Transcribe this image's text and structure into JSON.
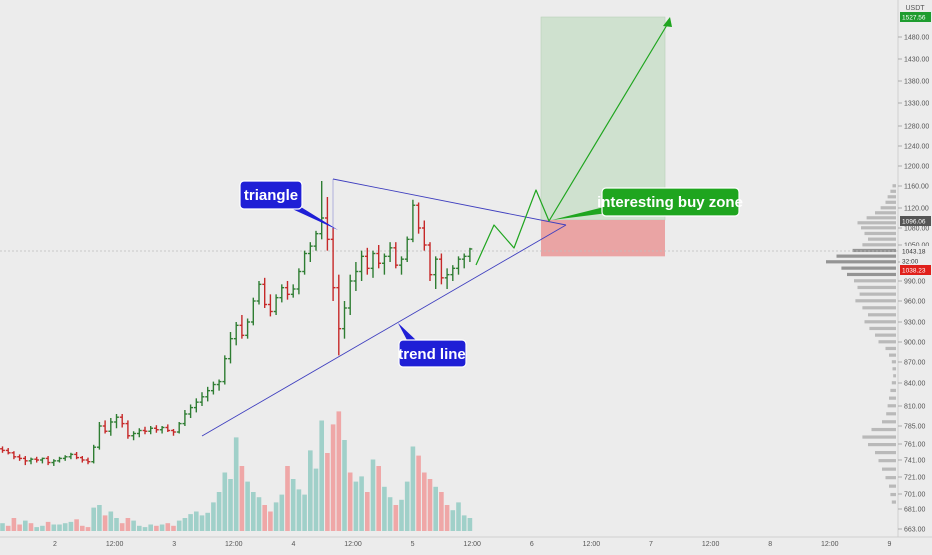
{
  "chart_data": {
    "type": "ohlc",
    "currency_label": "USDT",
    "price_axis": {
      "ticks": [
        663,
        681,
        701,
        721,
        741,
        761,
        785,
        810,
        840,
        870,
        900,
        930,
        960,
        990,
        1020,
        1050,
        1080,
        1120,
        1160,
        1200,
        1240,
        1280,
        1330,
        1380,
        1430,
        1480
      ],
      "tick_labels": [
        "663.00",
        "681.00",
        "701.00",
        "721.00",
        "741.00",
        "761.00",
        "785.00",
        "810.00",
        "840.00",
        "870.00",
        "900.00",
        "930.00",
        "960.00",
        "990.00",
        "1020.00",
        "1050.00",
        "1080.00",
        "1120.00",
        "1160.00",
        "1200.00",
        "1240.00",
        "1280.00",
        "1330.00",
        "1380.00",
        "1430.00",
        "1480.00"
      ]
    },
    "time_axis": {
      "labels": [
        "2",
        "12:00",
        "3",
        "12:00",
        "4",
        "12:00",
        "5",
        "12:00",
        "6",
        "12:00",
        "7",
        "12:00",
        "8",
        "12:00",
        "9"
      ]
    },
    "price_tags": {
      "target": {
        "text": "1527.56",
        "color": "#1e9c2f"
      },
      "zone_top": {
        "text": "1096.06",
        "color": "#555555"
      },
      "current": {
        "text": "1043.18",
        "color": "#ffffff"
      },
      "countdown": {
        "text": "32:00",
        "color": "#ffffff"
      },
      "low_tag": {
        "text": "1038.23",
        "color": "#e0201b"
      }
    },
    "bullish_color": "#2e7d32",
    "bearish_color": "#c62828",
    "volume_up_color": "#9ccfc7",
    "volume_down_color": "#efa3a3",
    "triangle_line_color": "#3f3fbf",
    "projection_color": "#1fa51f",
    "target_zone_color": "#cfe1cf",
    "stop_zone_color": "#eaa4a4",
    "candles": [
      [
        755,
        758,
        750,
        753
      ],
      [
        753,
        756,
        748,
        750
      ],
      [
        750,
        752,
        742,
        745
      ],
      [
        745,
        748,
        740,
        743
      ],
      [
        743,
        746,
        735,
        740
      ],
      [
        740,
        744,
        736,
        742
      ],
      [
        742,
        745,
        738,
        741
      ],
      [
        741,
        744,
        737,
        743
      ],
      [
        743,
        746,
        735,
        738
      ],
      [
        738,
        742,
        734,
        740
      ],
      [
        740,
        745,
        738,
        743
      ],
      [
        743,
        747,
        740,
        745
      ],
      [
        745,
        750,
        742,
        748
      ],
      [
        748,
        751,
        742,
        744
      ],
      [
        744,
        746,
        738,
        741
      ],
      [
        741,
        744,
        736,
        739
      ],
      [
        739,
        760,
        737,
        757
      ],
      [
        757,
        790,
        754,
        785
      ],
      [
        785,
        792,
        775,
        778
      ],
      [
        778,
        795,
        772,
        790
      ],
      [
        790,
        800,
        782,
        796
      ],
      [
        796,
        800,
        783,
        788
      ],
      [
        788,
        792,
        768,
        772
      ],
      [
        772,
        778,
        766,
        775
      ],
      [
        775,
        782,
        770,
        779
      ],
      [
        779,
        784,
        774,
        778
      ],
      [
        778,
        785,
        774,
        782
      ],
      [
        782,
        786,
        776,
        780
      ],
      [
        780,
        785,
        775,
        783
      ],
      [
        783,
        787,
        777,
        779
      ],
      [
        779,
        781,
        772,
        777
      ],
      [
        777,
        790,
        775,
        788
      ],
      [
        788,
        805,
        785,
        800
      ],
      [
        800,
        812,
        795,
        808
      ],
      [
        808,
        820,
        802,
        815
      ],
      [
        815,
        828,
        810,
        822
      ],
      [
        822,
        835,
        816,
        830
      ],
      [
        830,
        842,
        825,
        838
      ],
      [
        838,
        845,
        830,
        842
      ],
      [
        842,
        880,
        838,
        875
      ],
      [
        875,
        915,
        868,
        905
      ],
      [
        905,
        930,
        895,
        925
      ],
      [
        925,
        940,
        905,
        910
      ],
      [
        910,
        935,
        905,
        930
      ],
      [
        930,
        965,
        925,
        960
      ],
      [
        960,
        990,
        955,
        985
      ],
      [
        985,
        995,
        950,
        955
      ],
      [
        955,
        970,
        938,
        945
      ],
      [
        945,
        970,
        940,
        965
      ],
      [
        965,
        985,
        958,
        980
      ],
      [
        980,
        990,
        962,
        970
      ],
      [
        970,
        985,
        965,
        978
      ],
      [
        978,
        1010,
        970,
        1005
      ],
      [
        1005,
        1040,
        1000,
        1035
      ],
      [
        1035,
        1055,
        1020,
        1048
      ],
      [
        1048,
        1075,
        1040,
        1070
      ],
      [
        1070,
        1170,
        1060,
        1100
      ],
      [
        1100,
        1140,
        1040,
        1060
      ],
      [
        1060,
        1080,
        960,
        980
      ],
      [
        980,
        1000,
        880,
        920
      ],
      [
        920,
        960,
        905,
        950
      ],
      [
        950,
        1000,
        940,
        990
      ],
      [
        990,
        1020,
        975,
        1005
      ],
      [
        1005,
        1040,
        990,
        1030
      ],
      [
        1030,
        1045,
        1000,
        1010
      ],
      [
        1010,
        1040,
        995,
        1035
      ],
      [
        1035,
        1050,
        1010,
        1018
      ],
      [
        1018,
        1035,
        1000,
        1030
      ],
      [
        1030,
        1055,
        1020,
        1045
      ],
      [
        1045,
        1055,
        1010,
        1015
      ],
      [
        1015,
        1030,
        1000,
        1025
      ],
      [
        1025,
        1065,
        1020,
        1060
      ],
      [
        1060,
        1135,
        1055,
        1125
      ],
      [
        1125,
        1130,
        1070,
        1080
      ],
      [
        1080,
        1095,
        1040,
        1050
      ],
      [
        1050,
        1055,
        990,
        1000
      ],
      [
        1000,
        1030,
        978,
        1025
      ],
      [
        1025,
        1035,
        985,
        995
      ],
      [
        995,
        1010,
        978,
        1000
      ],
      [
        1000,
        1015,
        990,
        1010
      ],
      [
        1010,
        1030,
        1000,
        1025
      ],
      [
        1025,
        1035,
        1010,
        1030
      ],
      [
        1030,
        1045,
        1020,
        1043
      ]
    ],
    "volume": [
      [
        0.06,
        0
      ],
      [
        0.04,
        1
      ],
      [
        0.1,
        1
      ],
      [
        0.05,
        1
      ],
      [
        0.08,
        0
      ],
      [
        0.06,
        1
      ],
      [
        0.03,
        0
      ],
      [
        0.04,
        0
      ],
      [
        0.07,
        1
      ],
      [
        0.05,
        0
      ],
      [
        0.05,
        0
      ],
      [
        0.06,
        0
      ],
      [
        0.07,
        0
      ],
      [
        0.09,
        1
      ],
      [
        0.04,
        1
      ],
      [
        0.03,
        1
      ],
      [
        0.18,
        0
      ],
      [
        0.2,
        0
      ],
      [
        0.12,
        1
      ],
      [
        0.15,
        0
      ],
      [
        0.1,
        0
      ],
      [
        0.06,
        1
      ],
      [
        0.1,
        1
      ],
      [
        0.08,
        0
      ],
      [
        0.04,
        0
      ],
      [
        0.03,
        0
      ],
      [
        0.05,
        0
      ],
      [
        0.04,
        1
      ],
      [
        0.05,
        0
      ],
      [
        0.06,
        1
      ],
      [
        0.04,
        1
      ],
      [
        0.08,
        0
      ],
      [
        0.1,
        0
      ],
      [
        0.13,
        0
      ],
      [
        0.15,
        0
      ],
      [
        0.12,
        0
      ],
      [
        0.14,
        0
      ],
      [
        0.22,
        0
      ],
      [
        0.3,
        0
      ],
      [
        0.45,
        0
      ],
      [
        0.4,
        0
      ],
      [
        0.72,
        0
      ],
      [
        0.5,
        1
      ],
      [
        0.38,
        0
      ],
      [
        0.3,
        0
      ],
      [
        0.26,
        0
      ],
      [
        0.2,
        1
      ],
      [
        0.15,
        1
      ],
      [
        0.22,
        0
      ],
      [
        0.28,
        0
      ],
      [
        0.5,
        1
      ],
      [
        0.4,
        0
      ],
      [
        0.32,
        0
      ],
      [
        0.28,
        0
      ],
      [
        0.62,
        0
      ],
      [
        0.48,
        0
      ],
      [
        0.85,
        0
      ],
      [
        0.6,
        1
      ],
      [
        0.82,
        1
      ],
      [
        0.92,
        1
      ],
      [
        0.7,
        0
      ],
      [
        0.45,
        1
      ],
      [
        0.38,
        0
      ],
      [
        0.42,
        0
      ],
      [
        0.3,
        1
      ],
      [
        0.55,
        0
      ],
      [
        0.5,
        1
      ],
      [
        0.34,
        0
      ],
      [
        0.26,
        0
      ],
      [
        0.2,
        1
      ],
      [
        0.24,
        0
      ],
      [
        0.38,
        0
      ],
      [
        0.65,
        0
      ],
      [
        0.58,
        1
      ],
      [
        0.45,
        1
      ],
      [
        0.4,
        1
      ],
      [
        0.34,
        0
      ],
      [
        0.3,
        1
      ],
      [
        0.2,
        1
      ],
      [
        0.16,
        0
      ],
      [
        0.22,
        0
      ],
      [
        0.12,
        0
      ],
      [
        0.1,
        0
      ]
    ],
    "volume_profile": [
      [
        1160,
        0.05
      ],
      [
        1150,
        0.08
      ],
      [
        1140,
        0.12
      ],
      [
        1130,
        0.15
      ],
      [
        1120,
        0.22
      ],
      [
        1110,
        0.3
      ],
      [
        1100,
        0.42
      ],
      [
        1090,
        0.55
      ],
      [
        1080,
        0.5
      ],
      [
        1070,
        0.45
      ],
      [
        1060,
        0.4
      ],
      [
        1050,
        0.48
      ],
      [
        1040,
        0.62
      ],
      [
        1030,
        0.85
      ],
      [
        1020,
        1.0
      ],
      [
        1010,
        0.78
      ],
      [
        1000,
        0.7
      ],
      [
        990,
        0.6
      ],
      [
        980,
        0.55
      ],
      [
        970,
        0.52
      ],
      [
        960,
        0.58
      ],
      [
        950,
        0.48
      ],
      [
        940,
        0.4
      ],
      [
        930,
        0.45
      ],
      [
        920,
        0.38
      ],
      [
        910,
        0.3
      ],
      [
        900,
        0.25
      ],
      [
        890,
        0.15
      ],
      [
        880,
        0.1
      ],
      [
        870,
        0.06
      ],
      [
        860,
        0.05
      ],
      [
        850,
        0.04
      ],
      [
        840,
        0.06
      ],
      [
        830,
        0.08
      ],
      [
        820,
        0.1
      ],
      [
        810,
        0.12
      ],
      [
        800,
        0.14
      ],
      [
        790,
        0.2
      ],
      [
        780,
        0.35
      ],
      [
        770,
        0.48
      ],
      [
        760,
        0.4
      ],
      [
        750,
        0.3
      ],
      [
        740,
        0.25
      ],
      [
        730,
        0.2
      ],
      [
        720,
        0.15
      ],
      [
        710,
        0.1
      ],
      [
        700,
        0.08
      ],
      [
        690,
        0.06
      ]
    ],
    "annotations": {
      "triangle_label": "triangle",
      "trendline_label": "trend line",
      "buyzone_label": "interesting buy zone"
    }
  }
}
